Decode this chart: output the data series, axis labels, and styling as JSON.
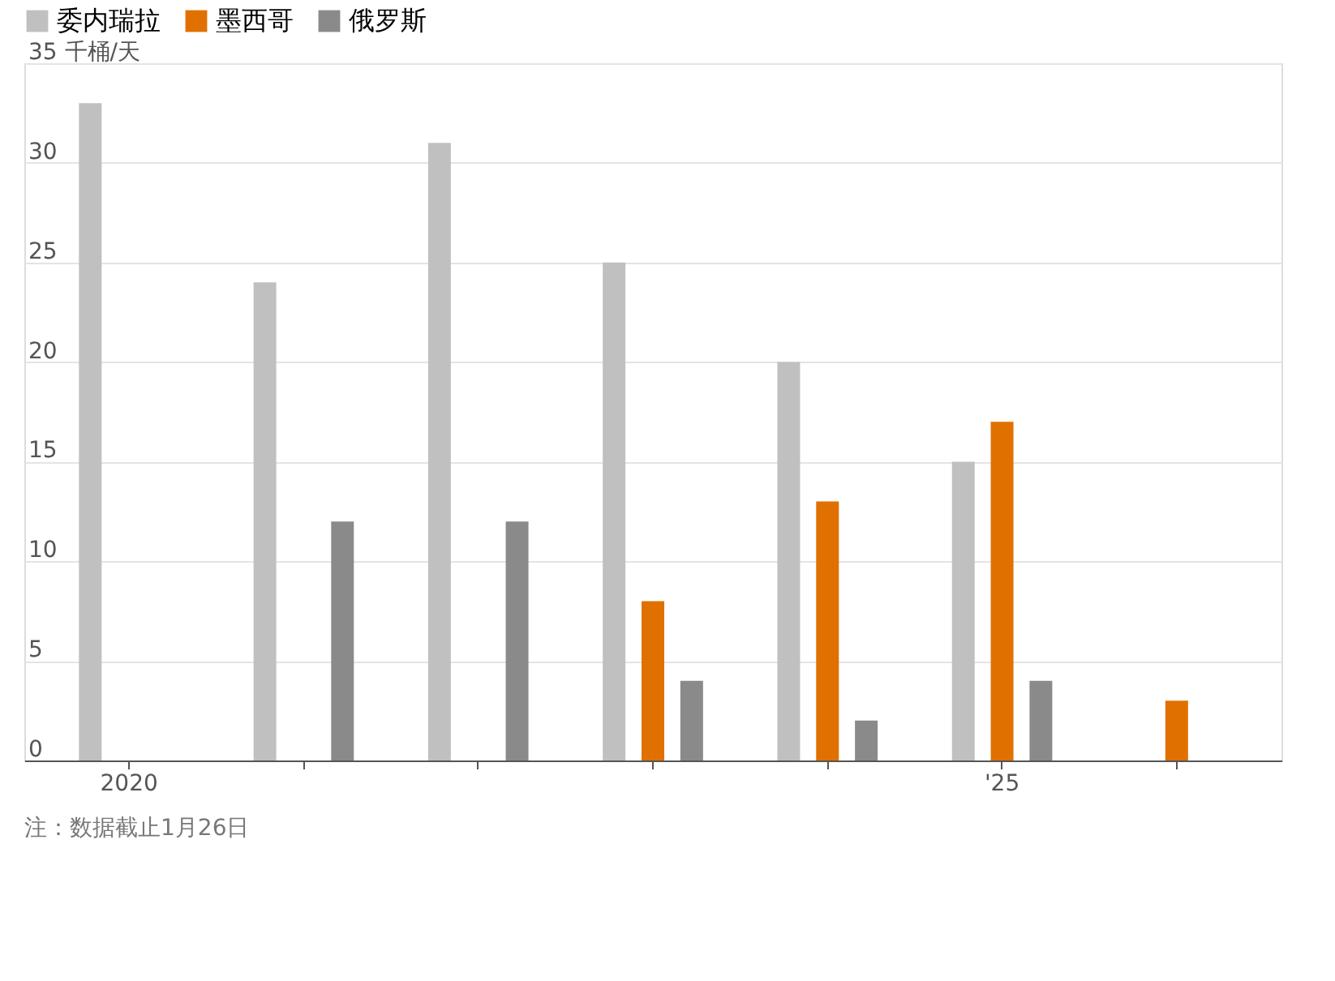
{
  "chart_data": {
    "type": "bar",
    "categories": [
      "2020",
      null,
      null,
      null,
      null,
      "'25",
      null
    ],
    "series": [
      {
        "name": "委内瑞拉",
        "color": "#c0c0c0",
        "values": [
          33,
          24,
          31,
          25,
          20,
          15,
          null
        ]
      },
      {
        "name": "墨西哥",
        "color": "#e07000",
        "values": [
          null,
          null,
          null,
          8,
          13,
          17,
          3
        ]
      },
      {
        "name": "俄罗斯",
        "color": "#8a8a8a",
        "values": [
          null,
          12,
          12,
          4,
          2,
          4,
          null
        ]
      }
    ],
    "ylim": [
      0,
      35
    ],
    "yticks": [
      0,
      5,
      10,
      15,
      20,
      25,
      30,
      {
        "value": 35,
        "label": "35 千桶/天"
      }
    ],
    "grid": "y",
    "legend": "top left",
    "annotations": [
      "注：数据截止1月26日"
    ]
  }
}
